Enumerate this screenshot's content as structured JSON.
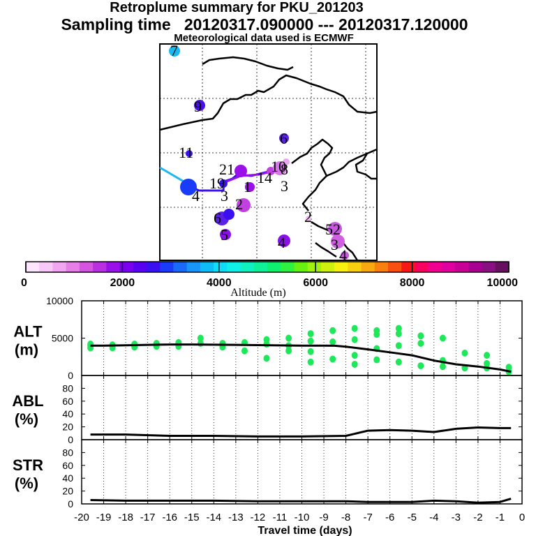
{
  "titles": {
    "line1": "Retroplume summary for PKU_201203",
    "line2": "Sampling time   20120317.090000 --- 20120317.120000",
    "line3": "Meteorological data used is ECMWF"
  },
  "colorbar": {
    "ticks": [
      "0",
      "2000",
      "4000",
      "6000",
      "8000",
      "10000"
    ],
    "label": "Altitude (m)",
    "colors": [
      "#fde6fd",
      "#f8c8f8",
      "#f0a6f0",
      "#e680e6",
      "#d455e0",
      "#b830e0",
      "#9a10e8",
      "#7a00f0",
      "#5a00f0",
      "#3a10f0",
      "#1a3cf8",
      "#1a6af8",
      "#1a96f8",
      "#10bcf8",
      "#10dcf8",
      "#10f0e8",
      "#10f0c0",
      "#10f098",
      "#10f070",
      "#30f040",
      "#68f010",
      "#a0f010",
      "#d0f010",
      "#f8f010",
      "#f8d010",
      "#f8a810",
      "#f88010",
      "#f85010",
      "#f81818",
      "#f80060",
      "#f00090",
      "#e000a0",
      "#c80098",
      "#a80090",
      "#881080",
      "#681060"
    ]
  },
  "map_labels": [
    {
      "text": "7",
      "col": "#1ab8f0"
    },
    {
      "text": "9",
      "col": "#4a10e8"
    },
    {
      "text": "6",
      "col": "#5a20e8"
    },
    {
      "text": "11",
      "col": "#3a10f0"
    },
    {
      "text": "21",
      "col": "#9a10e8"
    },
    {
      "text": "10",
      "col": "#e8a8f0"
    },
    {
      "text": "14",
      "col": "#c040e0"
    },
    {
      "text": "8",
      "col": "#d878e8"
    },
    {
      "text": "3",
      "col": "#ffffff"
    },
    {
      "text": "4",
      "col": "#1a3cf8"
    },
    {
      "text": "19",
      "col": "#2a2cf8"
    },
    {
      "text": "3",
      "col": "#8a10ea"
    },
    {
      "text": "1",
      "col": "#7a00f0"
    },
    {
      "text": "2",
      "col": "#c040e0"
    },
    {
      "text": "6",
      "col": "#8a10ea"
    },
    {
      "text": "5",
      "col": "#8a10ea"
    },
    {
      "text": "4",
      "col": "#8a10ea"
    },
    {
      "text": "52",
      "col": "#d060e0"
    },
    {
      "text": "3",
      "col": "#c858e0"
    },
    {
      "text": "4",
      "col": "#c858e0"
    },
    {
      "text": "2",
      "col": "#f0c0f0"
    }
  ],
  "chart_data": [
    {
      "type": "scatter",
      "name": "ALT",
      "ylabel": "ALT (m)",
      "ylabel_lines": [
        "ALT",
        "(m)"
      ],
      "ylim": [
        0,
        10000
      ],
      "yticks": [
        "10000",
        "5000",
        "0"
      ],
      "line_color": "#000000",
      "point_color": "#1ee85a",
      "line": {
        "x": [
          -19.6,
          -19,
          -18,
          -17,
          -16,
          -15,
          -14,
          -13,
          -12,
          -11,
          -10,
          -9,
          -8.5,
          -8,
          -7,
          -6,
          -5,
          -4,
          -3,
          -2,
          -1,
          -0.5
        ],
        "y": [
          4000,
          4000,
          4050,
          4100,
          4150,
          4150,
          4120,
          4100,
          4070,
          4030,
          4000,
          3990,
          3980,
          3850,
          3500,
          3100,
          2700,
          2000,
          1500,
          1200,
          800,
          500
        ]
      },
      "points": [
        {
          "x": -19.6,
          "y": 4200
        },
        {
          "x": -19.6,
          "y": 3700
        },
        {
          "x": -19.6,
          "y": 4000
        },
        {
          "x": -18.6,
          "y": 4100
        },
        {
          "x": -18.6,
          "y": 3700
        },
        {
          "x": -17.6,
          "y": 4200
        },
        {
          "x": -17.6,
          "y": 3800
        },
        {
          "x": -16.6,
          "y": 4300
        },
        {
          "x": -16.6,
          "y": 3900
        },
        {
          "x": -15.6,
          "y": 4400
        },
        {
          "x": -15.6,
          "y": 3900
        },
        {
          "x": -14.6,
          "y": 4300
        },
        {
          "x": -14.6,
          "y": 5000
        },
        {
          "x": -13.6,
          "y": 4300
        },
        {
          "x": -13.6,
          "y": 3800
        },
        {
          "x": -12.6,
          "y": 4400
        },
        {
          "x": -12.6,
          "y": 3300
        },
        {
          "x": -11.6,
          "y": 4800
        },
        {
          "x": -11.6,
          "y": 4200
        },
        {
          "x": -11.6,
          "y": 2300
        },
        {
          "x": -10.6,
          "y": 5000
        },
        {
          "x": -10.6,
          "y": 4000
        },
        {
          "x": -10.6,
          "y": 3300
        },
        {
          "x": -9.6,
          "y": 5600
        },
        {
          "x": -9.6,
          "y": 4600
        },
        {
          "x": -9.6,
          "y": 3200
        },
        {
          "x": -9.6,
          "y": 1800
        },
        {
          "x": -8.6,
          "y": 6000
        },
        {
          "x": -8.6,
          "y": 4500
        },
        {
          "x": -8.6,
          "y": 2200
        },
        {
          "x": -7.6,
          "y": 6300
        },
        {
          "x": -7.6,
          "y": 4800
        },
        {
          "x": -7.6,
          "y": 2700
        },
        {
          "x": -7.6,
          "y": 1500
        },
        {
          "x": -6.6,
          "y": 6000
        },
        {
          "x": -6.6,
          "y": 5500
        },
        {
          "x": -6.6,
          "y": 3600
        },
        {
          "x": -6.6,
          "y": 2100
        },
        {
          "x": -5.6,
          "y": 6300
        },
        {
          "x": -5.6,
          "y": 5600
        },
        {
          "x": -5.6,
          "y": 4000
        },
        {
          "x": -5.6,
          "y": 1800
        },
        {
          "x": -4.6,
          "y": 5300
        },
        {
          "x": -4.6,
          "y": 4300
        },
        {
          "x": -4.6,
          "y": 1300
        },
        {
          "x": -3.6,
          "y": 5000
        },
        {
          "x": -3.6,
          "y": 2000
        },
        {
          "x": -3.6,
          "y": 1200
        },
        {
          "x": -2.6,
          "y": 3000
        },
        {
          "x": -2.6,
          "y": 1000
        },
        {
          "x": -1.6,
          "y": 2700
        },
        {
          "x": -1.6,
          "y": 1600
        },
        {
          "x": -1.6,
          "y": 1000
        },
        {
          "x": -0.6,
          "y": 1100
        },
        {
          "x": -0.6,
          "y": 500
        }
      ]
    },
    {
      "type": "line",
      "name": "ABL",
      "ylabel": "ABL (%)",
      "ylabel_lines": [
        "ABL",
        "(%)"
      ],
      "ylim": [
        0,
        100
      ],
      "yticks": [
        "80",
        "60",
        "40",
        "20",
        "0"
      ],
      "x": [
        -19.6,
        -18,
        -16,
        -14,
        -12,
        -10,
        -8,
        -7,
        -6,
        -5,
        -4,
        -3,
        -2,
        -1,
        -0.5
      ],
      "y": [
        8,
        8,
        6,
        6,
        5,
        5,
        6,
        14,
        15,
        14,
        12,
        17,
        19,
        18,
        18
      ]
    },
    {
      "type": "line",
      "name": "STR",
      "ylabel": "STR (%)",
      "ylabel_lines": [
        "STR",
        "(%)"
      ],
      "ylim": [
        0,
        100
      ],
      "yticks": [
        "80",
        "60",
        "40",
        "20",
        "0"
      ],
      "x": [
        -19.6,
        -18,
        -16,
        -14,
        -12,
        -10,
        -8,
        -7,
        -6,
        -5,
        -4,
        -3,
        -2,
        -1,
        -0.5
      ],
      "y": [
        6,
        5,
        5,
        5,
        4,
        4,
        4,
        3,
        3,
        3,
        5,
        4,
        2,
        3,
        8
      ]
    }
  ],
  "xaxis": {
    "label": "Travel time (days)",
    "xlim": [
      -20,
      0
    ],
    "ticks": [
      "-20",
      "-19",
      "-18",
      "-17",
      "-16",
      "-15",
      "-14",
      "-13",
      "-12",
      "-11",
      "-10",
      "-9",
      "-8",
      "-7",
      "-6",
      "-5",
      "-4",
      "-3",
      "-2",
      "-1",
      "0"
    ]
  }
}
